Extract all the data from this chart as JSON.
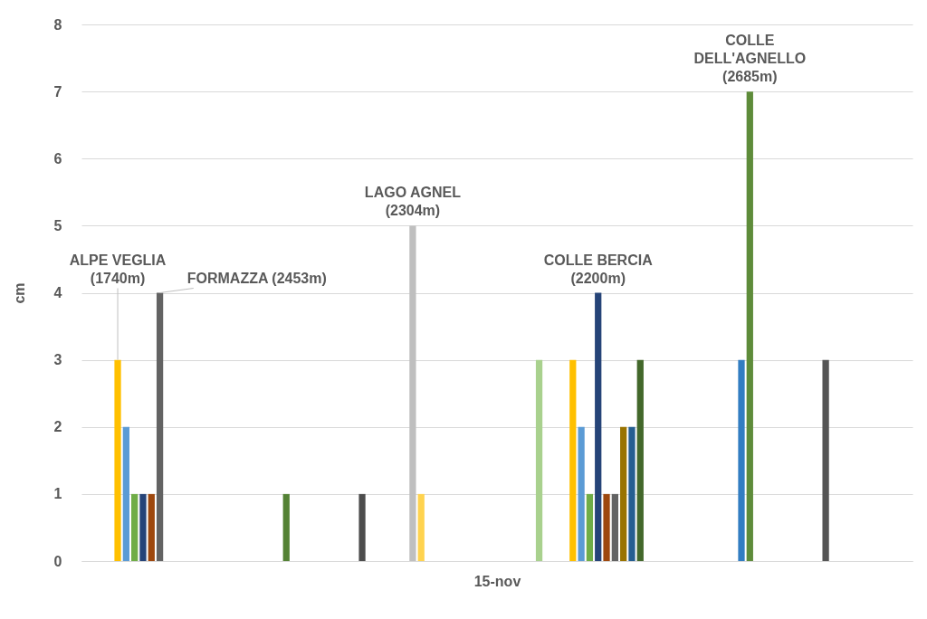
{
  "chart_data": {
    "type": "bar",
    "ylabel": "cm",
    "categories": [
      "15-nov"
    ],
    "ylim": [
      0,
      8
    ],
    "yticks": [
      0,
      1,
      2,
      3,
      4,
      5,
      6,
      7,
      8
    ],
    "grid": "y",
    "series": [
      {
        "name": "ALPE VEGLIA (1740m)",
        "color": "#ffc000",
        "values": [
          3
        ]
      },
      {
        "color": "#5b9bd5",
        "values": [
          2
        ]
      },
      {
        "color": "#70ad47",
        "values": [
          1
        ]
      },
      {
        "color": "#264478",
        "values": [
          1
        ]
      },
      {
        "color": "#9e480e",
        "values": [
          1
        ]
      },
      {
        "name": "FORMAZZA (2453m)",
        "color": "#636363",
        "values": [
          4
        ]
      },
      {
        "values": [
          0
        ]
      },
      {
        "values": [
          0
        ]
      },
      {
        "values": [
          0
        ]
      },
      {
        "values": [
          0
        ]
      },
      {
        "values": [
          0
        ]
      },
      {
        "values": [
          0
        ]
      },
      {
        "values": [
          0
        ]
      },
      {
        "values": [
          0
        ]
      },
      {
        "values": [
          0
        ]
      },
      {
        "values": [
          0
        ]
      },
      {
        "values": [
          0
        ]
      },
      {
        "values": [
          0
        ]
      },
      {
        "values": [
          0
        ]
      },
      {
        "values": [
          0
        ]
      },
      {
        "color": "#548235",
        "values": [
          1
        ]
      },
      {
        "values": [
          0
        ]
      },
      {
        "values": [
          0
        ]
      },
      {
        "values": [
          0
        ]
      },
      {
        "values": [
          0
        ]
      },
      {
        "values": [
          0
        ]
      },
      {
        "values": [
          0
        ]
      },
      {
        "values": [
          0
        ]
      },
      {
        "values": [
          0
        ]
      },
      {
        "color": "#4d4d4d",
        "values": [
          1
        ]
      },
      {
        "values": [
          0
        ]
      },
      {
        "values": [
          0
        ]
      },
      {
        "values": [
          0
        ]
      },
      {
        "values": [
          0
        ]
      },
      {
        "values": [
          0
        ]
      },
      {
        "name": "LAGO AGNEL (2304m)",
        "color": "#bfbfbf",
        "values": [
          5
        ]
      },
      {
        "color": "#ffd34f",
        "values": [
          1
        ]
      },
      {
        "values": [
          0
        ]
      },
      {
        "values": [
          0
        ]
      },
      {
        "values": [
          0
        ]
      },
      {
        "values": [
          0
        ]
      },
      {
        "values": [
          0
        ]
      },
      {
        "values": [
          0
        ]
      },
      {
        "values": [
          0
        ]
      },
      {
        "values": [
          0
        ]
      },
      {
        "values": [
          0
        ]
      },
      {
        "values": [
          0
        ]
      },
      {
        "values": [
          0
        ]
      },
      {
        "values": [
          0
        ]
      },
      {
        "values": [
          0
        ]
      },
      {
        "color": "#a9d18e",
        "values": [
          3
        ]
      },
      {
        "values": [
          0
        ]
      },
      {
        "values": [
          0
        ]
      },
      {
        "values": [
          0
        ]
      },
      {
        "color": "#ffc000",
        "values": [
          3
        ]
      },
      {
        "color": "#5b9bd5",
        "values": [
          2
        ]
      },
      {
        "color": "#70ad47",
        "values": [
          1
        ]
      },
      {
        "name": "COLLE BERCIA (2200m)",
        "color": "#264478",
        "values": [
          4
        ]
      },
      {
        "color": "#9e480e",
        "values": [
          1
        ]
      },
      {
        "color": "#636363",
        "values": [
          1
        ]
      },
      {
        "color": "#997300",
        "values": [
          2
        ]
      },
      {
        "color": "#255e91",
        "values": [
          2
        ]
      },
      {
        "color": "#43682b",
        "values": [
          3
        ]
      },
      {
        "values": [
          0
        ]
      },
      {
        "values": [
          0
        ]
      },
      {
        "values": [
          0
        ]
      },
      {
        "values": [
          0
        ]
      },
      {
        "values": [
          0
        ]
      },
      {
        "values": [
          0
        ]
      },
      {
        "values": [
          0
        ]
      },
      {
        "values": [
          0
        ]
      },
      {
        "values": [
          0
        ]
      },
      {
        "values": [
          0
        ]
      },
      {
        "values": [
          0
        ]
      },
      {
        "color": "#327dc2",
        "values": [
          3
        ]
      },
      {
        "name": "COLLE DELL'AGNELLO (2685m)",
        "color": "#5e8c3a",
        "values": [
          7
        ]
      },
      {
        "values": [
          0
        ]
      },
      {
        "values": [
          0
        ]
      },
      {
        "values": [
          0
        ]
      },
      {
        "values": [
          0
        ]
      },
      {
        "values": [
          0
        ]
      },
      {
        "values": [
          0
        ]
      },
      {
        "values": [
          0
        ]
      },
      {
        "values": [
          0
        ]
      },
      {
        "color": "#555555",
        "values": [
          3
        ]
      },
      {
        "values": [
          0
        ]
      },
      {
        "values": [
          0
        ]
      },
      {
        "values": [
          0
        ]
      },
      {
        "values": [
          0
        ]
      },
      {
        "values": [
          0
        ]
      },
      {
        "values": [
          0
        ]
      }
    ]
  }
}
